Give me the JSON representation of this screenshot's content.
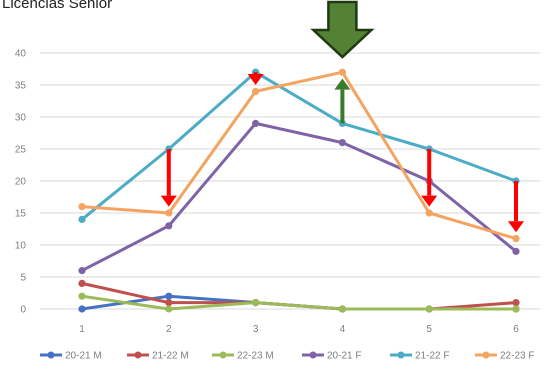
{
  "chart_data": {
    "type": "line",
    "title": "Licencias Senior",
    "xlabel": "",
    "ylabel": "",
    "x": [
      1,
      2,
      3,
      4,
      5,
      6
    ],
    "ylim": [
      0,
      40
    ],
    "yticks": [
      0,
      5,
      10,
      15,
      20,
      25,
      30,
      35,
      40
    ],
    "grid": true,
    "legend": "bottom",
    "series": [
      {
        "name": "20-21 M",
        "color": "#4472c4",
        "values": [
          0,
          2,
          1,
          0,
          0,
          0
        ]
      },
      {
        "name": "21-22 M",
        "color": "#c0504d",
        "values": [
          4,
          1,
          1,
          0,
          0,
          1
        ]
      },
      {
        "name": "22-23 M",
        "color": "#9bbb59",
        "values": [
          2,
          0,
          1,
          0,
          0,
          0
        ]
      },
      {
        "name": "20-21 F",
        "color": "#7f63a8",
        "values": [
          6,
          13,
          29,
          26,
          20,
          9
        ]
      },
      {
        "name": "21-22 F",
        "color": "#4bacc6",
        "values": [
          14,
          25,
          37,
          29,
          25,
          20
        ]
      },
      {
        "name": "22-23 F",
        "color": "#f4a460",
        "values": [
          16,
          15,
          34,
          37,
          15,
          11
        ]
      }
    ],
    "annotations": [
      {
        "type": "arrow-down",
        "color": "#ff0000",
        "x": 2,
        "from": 25,
        "to": 16
      },
      {
        "type": "arrow-down",
        "color": "#ff0000",
        "x": 3,
        "from": 37,
        "to": 35
      },
      {
        "type": "arrow-up",
        "color": "#3a7a2a",
        "x": 4,
        "from": 29,
        "to": 36
      },
      {
        "type": "arrow-down",
        "color": "#ff0000",
        "x": 5,
        "from": 25,
        "to": 16
      },
      {
        "type": "arrow-down",
        "color": "#ff0000",
        "x": 6,
        "from": 20,
        "to": 12
      },
      {
        "type": "big-arrow-down",
        "color": "#548235",
        "x": 4
      }
    ]
  }
}
